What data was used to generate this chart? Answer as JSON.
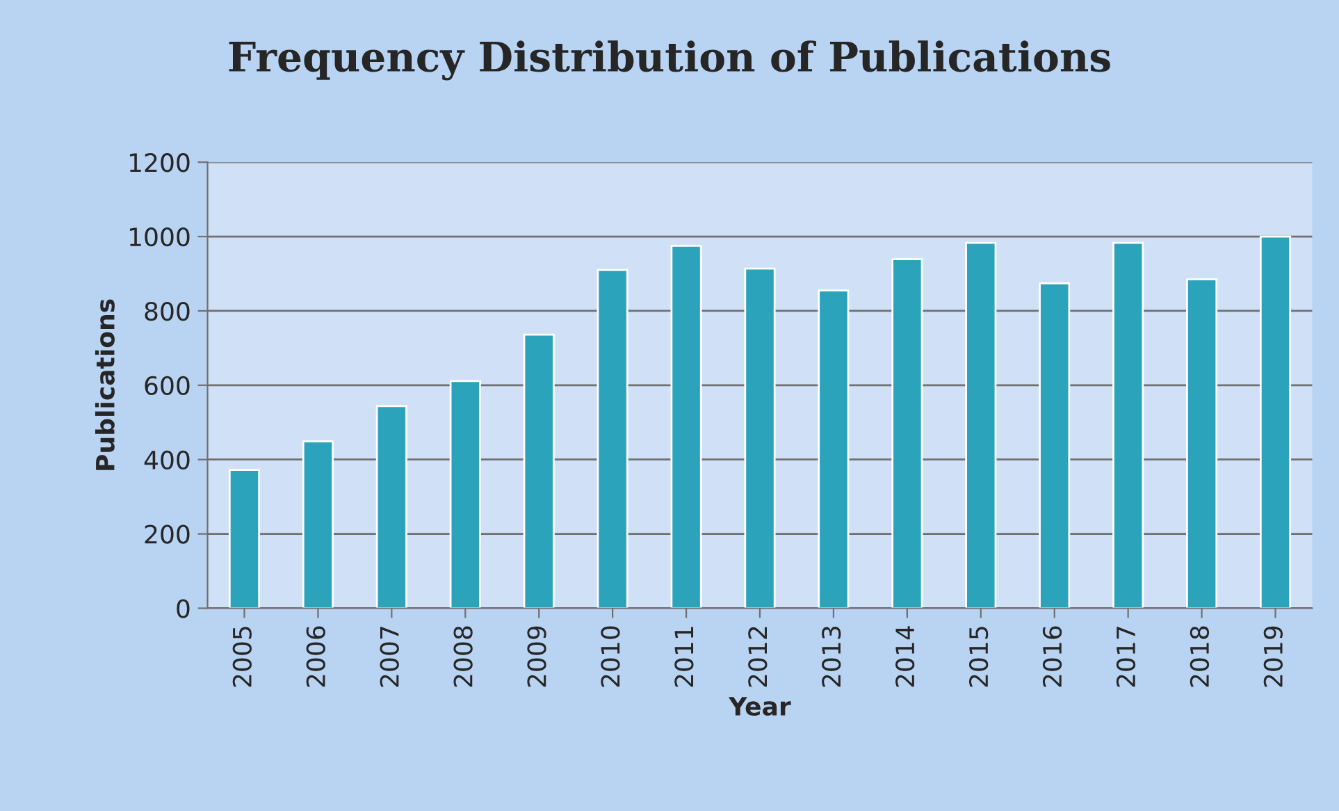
{
  "chart_data": {
    "type": "bar",
    "title": "Frequency Distribution of Publications",
    "xlabel": "Year",
    "ylabel": "Publications",
    "categories": [
      "2005",
      "2006",
      "2007",
      "2008",
      "2009",
      "2010",
      "2011",
      "2012",
      "2013",
      "2014",
      "2015",
      "2016",
      "2017",
      "2018",
      "2019"
    ],
    "values": [
      372,
      449,
      544,
      611,
      736,
      910,
      975,
      914,
      855,
      939,
      983,
      874,
      983,
      885,
      1000
    ],
    "color": "#2aa3bb",
    "ylim": [
      0,
      1200
    ],
    "yticks": [
      0,
      200,
      400,
      600,
      800,
      1000,
      1200
    ],
    "grid": "y",
    "legend": false
  }
}
